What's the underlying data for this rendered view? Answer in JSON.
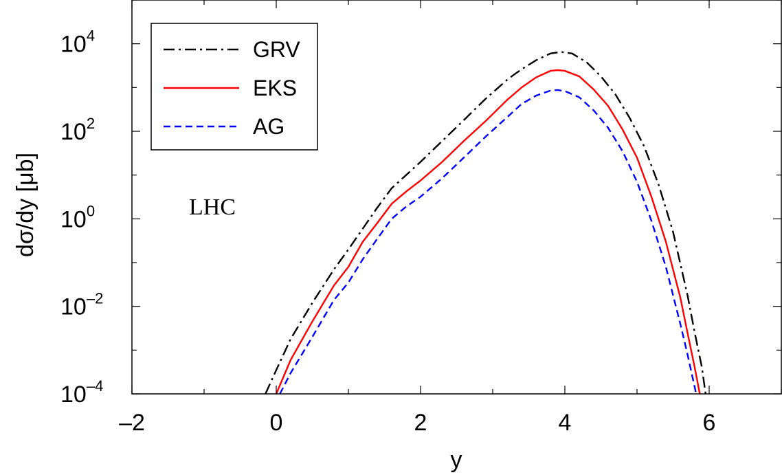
{
  "chart_data": {
    "type": "line",
    "xlabel": "y",
    "ylabel": "dσ/dy [μb]",
    "xlim": [
      -2,
      7
    ],
    "ylim": [
      0.0001,
      100000
    ],
    "yscale": "log",
    "xticks": [
      -2,
      0,
      2,
      4,
      6
    ],
    "xtick_labels": [
      "–2",
      "0",
      "2",
      "4",
      "6"
    ],
    "yticks": [
      {
        "value": 0.0001,
        "base": "10",
        "exp": "–4"
      },
      {
        "value": 0.01,
        "base": "10",
        "exp": "–2"
      },
      {
        "value": 1,
        "base": "10",
        "exp": "0"
      },
      {
        "value": 100,
        "base": "10",
        "exp": "2"
      },
      {
        "value": 10000,
        "base": "10",
        "exp": "4"
      }
    ],
    "grid": false,
    "legend": "top-left",
    "annotation": "LHC",
    "series": [
      {
        "name": "GRV",
        "color": "#000000",
        "style": "dashdot",
        "x": [
          -0.15,
          0.0,
          0.2,
          0.5,
          0.8,
          1.0,
          1.2,
          1.4,
          1.6,
          1.8,
          2.0,
          2.3,
          2.6,
          2.9,
          3.2,
          3.3,
          3.4,
          3.6,
          3.8,
          3.95,
          4.1,
          4.3,
          4.5,
          4.7,
          4.9,
          5.1,
          5.3,
          5.5,
          5.7,
          5.8,
          5.9,
          5.95
        ],
        "y": [
          0.0001,
          0.00035,
          0.0018,
          0.012,
          0.07,
          0.2,
          0.6,
          1.8,
          5,
          10,
          20,
          60,
          180,
          550,
          1500,
          2000,
          2600,
          4200,
          6000,
          6500,
          6000,
          3800,
          1800,
          700,
          200,
          45,
          6,
          0.5,
          0.018,
          0.0025,
          0.0004,
          0.0001
        ]
      },
      {
        "name": "EKS",
        "color": "#ff0000",
        "style": "solid",
        "x": [
          0.0,
          0.2,
          0.5,
          0.8,
          1.0,
          1.2,
          1.4,
          1.6,
          1.8,
          2.0,
          2.3,
          2.6,
          2.9,
          3.2,
          3.4,
          3.6,
          3.8,
          3.9,
          4.0,
          4.2,
          4.4,
          4.6,
          4.8,
          5.0,
          5.2,
          5.4,
          5.6,
          5.7,
          5.8,
          5.87
        ],
        "y": [
          0.0001,
          0.0006,
          0.0045,
          0.03,
          0.08,
          0.3,
          0.8,
          2.2,
          4.2,
          7.5,
          20,
          60,
          170,
          520,
          1000,
          1700,
          2400,
          2500,
          2400,
          1800,
          900,
          380,
          110,
          25,
          3.2,
          0.3,
          0.016,
          0.0025,
          0.0004,
          0.0001
        ]
      },
      {
        "name": "AG",
        "color": "#0000ff",
        "style": "dashed",
        "x": [
          0.05,
          0.2,
          0.5,
          0.8,
          1.0,
          1.2,
          1.4,
          1.6,
          1.8,
          2.0,
          2.3,
          2.6,
          2.9,
          3.2,
          3.4,
          3.6,
          3.8,
          3.9,
          4.0,
          4.2,
          4.4,
          4.6,
          4.8,
          5.0,
          5.2,
          5.4,
          5.6,
          5.7,
          5.82
        ],
        "y": [
          0.0001,
          0.0003,
          0.002,
          0.014,
          0.035,
          0.12,
          0.35,
          1.0,
          1.9,
          3.2,
          8.5,
          25,
          75,
          210,
          420,
          650,
          850,
          880,
          830,
          600,
          300,
          120,
          35,
          7,
          0.9,
          0.08,
          0.004,
          0.0008,
          0.0001
        ]
      }
    ]
  }
}
